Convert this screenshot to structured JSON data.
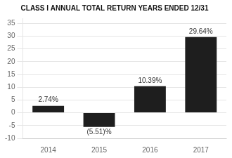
{
  "chart_data": {
    "type": "bar",
    "title": "CLASS I ANNUAL TOTAL RETURN YEARS ENDED 12/31",
    "categories": [
      "2014",
      "2015",
      "2016",
      "2017"
    ],
    "values": [
      2.74,
      -5.51,
      10.39,
      29.64
    ],
    "value_labels": [
      "2.74%",
      "(5.51)%",
      "10.39%",
      "29.64%"
    ],
    "data_labels": true,
    "color": "#1e1e1e",
    "ylim": [
      -10,
      37
    ],
    "yticks": [
      -10,
      -5,
      0,
      5,
      10,
      15,
      20,
      25,
      30,
      35
    ],
    "grid": true
  }
}
